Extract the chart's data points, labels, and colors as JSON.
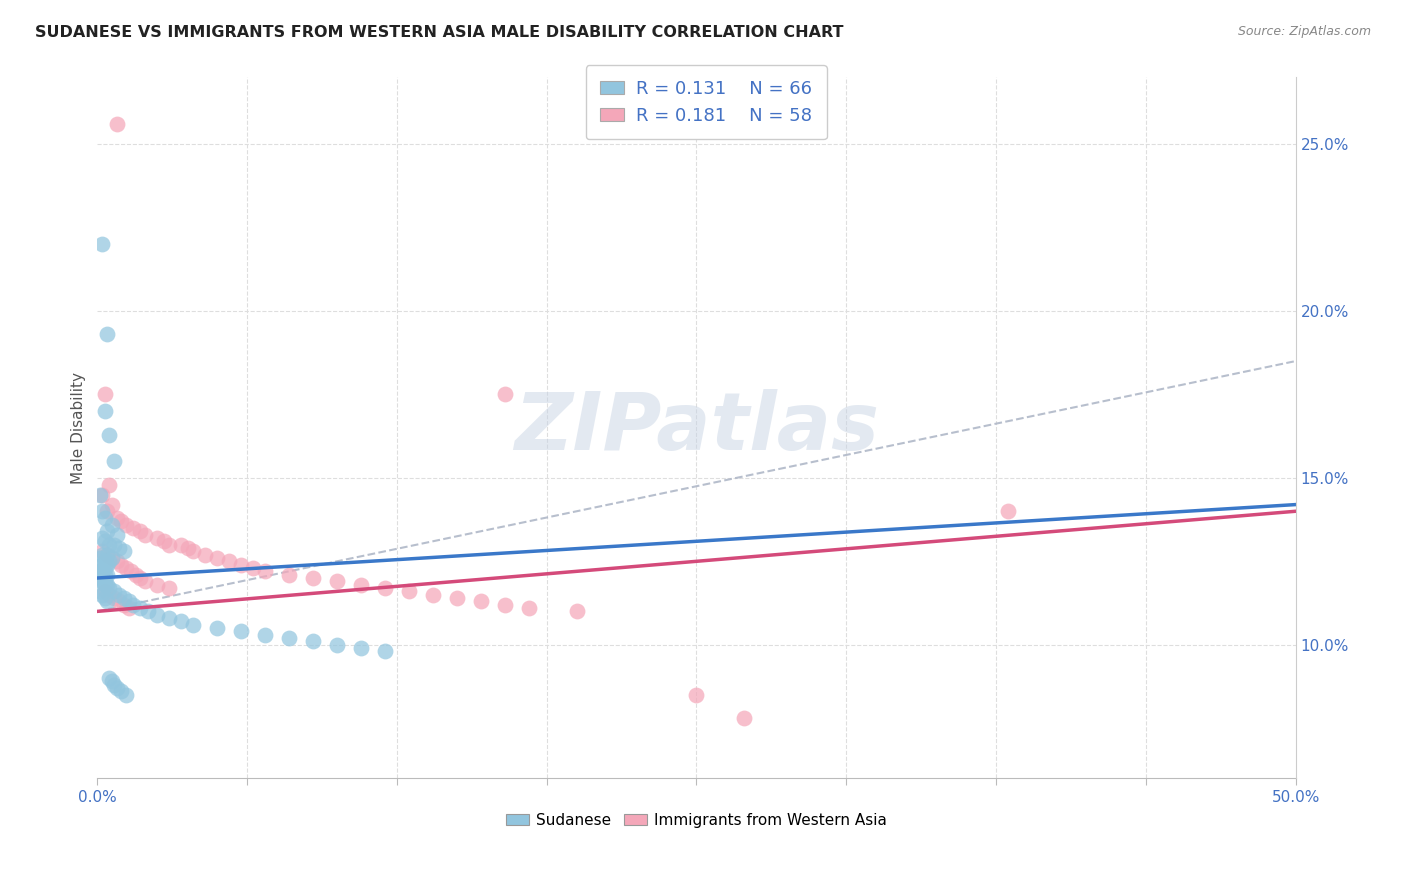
{
  "title": "SUDANESE VS IMMIGRANTS FROM WESTERN ASIA MALE DISABILITY CORRELATION CHART",
  "source": "Source: ZipAtlas.com",
  "ylabel": "Male Disability",
  "xlim": [
    0.0,
    0.5
  ],
  "ylim": [
    0.06,
    0.27
  ],
  "yticks": [
    0.1,
    0.15,
    0.2,
    0.25
  ],
  "ytick_labels": [
    "10.0%",
    "15.0%",
    "20.0%",
    "25.0%"
  ],
  "xticks": [
    0.0,
    0.0625,
    0.125,
    0.1875,
    0.25,
    0.3125,
    0.375,
    0.4375,
    0.5
  ],
  "legend_labels": [
    "Sudanese",
    "Immigrants from Western Asia"
  ],
  "blue_scatter_color": "#92c5de",
  "pink_scatter_color": "#f4a7b9",
  "blue_line_color": "#3a78c9",
  "pink_line_color": "#d44a7a",
  "dash_color": "#b0b8c8",
  "tick_label_color": "#4472c4",
  "watermark_color": "#c8d4e4",
  "title_color": "#222222",
  "source_color": "#888888",
  "grid_color": "#dedede",
  "R_blue": 0.131,
  "N_blue": 66,
  "R_pink": 0.181,
  "N_pink": 58,
  "blue_line_x0": 0.0,
  "blue_line_y0": 0.12,
  "blue_line_x1": 0.5,
  "blue_line_y1": 0.142,
  "pink_line_x0": 0.0,
  "pink_line_y0": 0.11,
  "pink_line_x1": 0.5,
  "pink_line_y1": 0.14,
  "dash_line_x0": 0.0,
  "dash_line_y0": 0.11,
  "dash_line_x1": 0.5,
  "dash_line_y1": 0.185,
  "blue_x": [
    0.002,
    0.004,
    0.003,
    0.005,
    0.007,
    0.001,
    0.002,
    0.003,
    0.006,
    0.004,
    0.008,
    0.002,
    0.003,
    0.005,
    0.007,
    0.009,
    0.011,
    0.002,
    0.004,
    0.006,
    0.001,
    0.003,
    0.005,
    0.002,
    0.004,
    0.003,
    0.001,
    0.002,
    0.003,
    0.004,
    0.001,
    0.002,
    0.003,
    0.002,
    0.004,
    0.003,
    0.005,
    0.007,
    0.009,
    0.011,
    0.013,
    0.015,
    0.018,
    0.021,
    0.025,
    0.03,
    0.035,
    0.04,
    0.05,
    0.06,
    0.07,
    0.08,
    0.09,
    0.1,
    0.11,
    0.12,
    0.001,
    0.002,
    0.003,
    0.004,
    0.005,
    0.006,
    0.007,
    0.008,
    0.01,
    0.012
  ],
  "blue_y": [
    0.22,
    0.193,
    0.17,
    0.163,
    0.155,
    0.145,
    0.14,
    0.138,
    0.136,
    0.134,
    0.133,
    0.132,
    0.131,
    0.13,
    0.13,
    0.129,
    0.128,
    0.127,
    0.127,
    0.126,
    0.126,
    0.125,
    0.125,
    0.124,
    0.124,
    0.123,
    0.122,
    0.122,
    0.121,
    0.121,
    0.12,
    0.12,
    0.119,
    0.119,
    0.118,
    0.118,
    0.117,
    0.116,
    0.115,
    0.114,
    0.113,
    0.112,
    0.111,
    0.11,
    0.109,
    0.108,
    0.107,
    0.106,
    0.105,
    0.104,
    0.103,
    0.102,
    0.101,
    0.1,
    0.099,
    0.098,
    0.116,
    0.115,
    0.114,
    0.113,
    0.09,
    0.089,
    0.088,
    0.087,
    0.086,
    0.085
  ],
  "pink_x": [
    0.008,
    0.003,
    0.005,
    0.002,
    0.006,
    0.004,
    0.008,
    0.01,
    0.012,
    0.015,
    0.018,
    0.02,
    0.025,
    0.028,
    0.03,
    0.035,
    0.038,
    0.04,
    0.045,
    0.05,
    0.055,
    0.06,
    0.065,
    0.07,
    0.08,
    0.09,
    0.1,
    0.11,
    0.12,
    0.13,
    0.14,
    0.15,
    0.16,
    0.17,
    0.18,
    0.2,
    0.002,
    0.004,
    0.006,
    0.008,
    0.01,
    0.012,
    0.014,
    0.016,
    0.018,
    0.02,
    0.025,
    0.03,
    0.003,
    0.005,
    0.007,
    0.009,
    0.011,
    0.013,
    0.25,
    0.27,
    0.38,
    0.17
  ],
  "pink_y": [
    0.256,
    0.175,
    0.148,
    0.145,
    0.142,
    0.14,
    0.138,
    0.137,
    0.136,
    0.135,
    0.134,
    0.133,
    0.132,
    0.131,
    0.13,
    0.13,
    0.129,
    0.128,
    0.127,
    0.126,
    0.125,
    0.124,
    0.123,
    0.122,
    0.121,
    0.12,
    0.119,
    0.118,
    0.117,
    0.116,
    0.115,
    0.114,
    0.113,
    0.112,
    0.111,
    0.11,
    0.128,
    0.127,
    0.126,
    0.125,
    0.124,
    0.123,
    0.122,
    0.121,
    0.12,
    0.119,
    0.118,
    0.117,
    0.116,
    0.115,
    0.114,
    0.113,
    0.112,
    0.111,
    0.085,
    0.078,
    0.14,
    0.175
  ]
}
